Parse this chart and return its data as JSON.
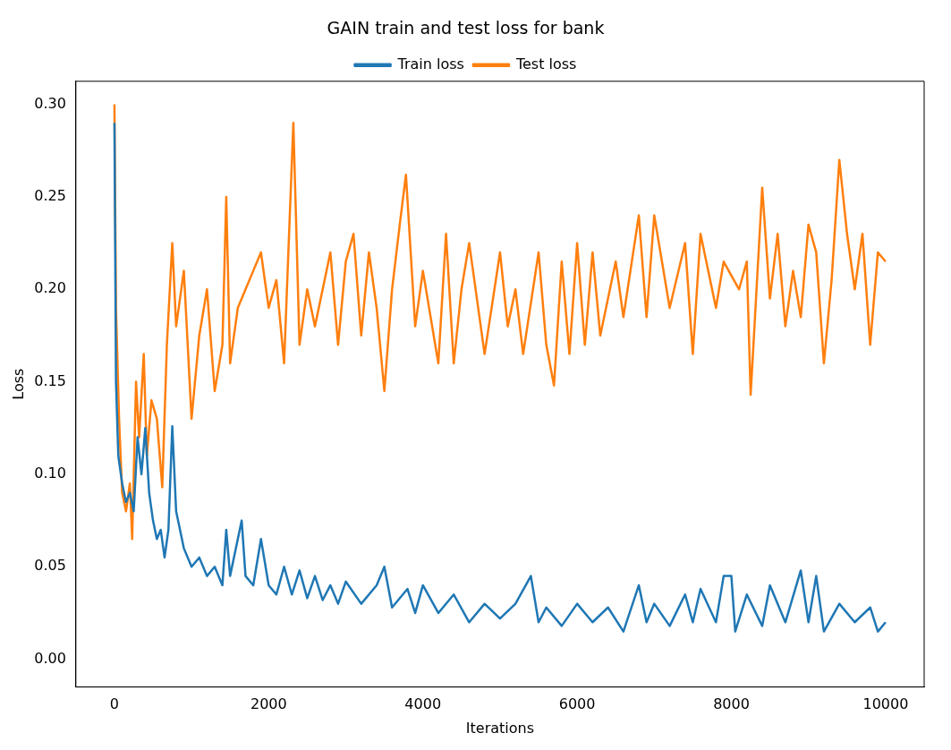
{
  "chart_data": {
    "type": "line",
    "title": "GAIN train and test loss for bank",
    "xlabel": "Iterations",
    "ylabel": "Loss",
    "xlim": [
      -500,
      10500
    ],
    "xticks": [
      0,
      2000,
      4000,
      6000,
      8000,
      10000
    ],
    "ylim": [
      -0.015,
      0.3125
    ],
    "yticks": [
      {
        "value": 0,
        "label": "0.00"
      },
      0.05,
      {
        "value": 0.1,
        "label": "0.10"
      },
      0.15,
      {
        "value": 0.2,
        "label": "0.20"
      },
      0.25,
      {
        "value": 0.3,
        "label": "0.30"
      }
    ],
    "grid": false,
    "legend": "top",
    "line_style": "solid",
    "marker": "none",
    "series": [
      {
        "name": "Train loss",
        "color": "#1f77b4",
        "x": [
          0,
          20,
          50,
          100,
          150,
          200,
          250,
          300,
          350,
          400,
          450,
          500,
          550,
          600,
          650,
          700,
          750,
          800,
          900,
          1000,
          1100,
          1200,
          1300,
          1400,
          1450,
          1500,
          1650,
          1700,
          1800,
          1900,
          2000,
          2100,
          2200,
          2300,
          2400,
          2500,
          2600,
          2700,
          2800,
          2900,
          3000,
          3200,
          3400,
          3500,
          3600,
          3800,
          3900,
          4000,
          4200,
          4400,
          4600,
          4800,
          5000,
          5200,
          5400,
          5500,
          5600,
          5800,
          6000,
          6200,
          6400,
          6600,
          6800,
          6900,
          7000,
          7200,
          7400,
          7500,
          7600,
          7800,
          7900,
          8000,
          8050,
          8200,
          8400,
          8500,
          8700,
          8900,
          9000,
          9100,
          9200,
          9400,
          9600,
          9800,
          9900,
          10000
        ],
        "values": [
          0.29,
          0.15,
          0.11,
          0.095,
          0.085,
          0.09,
          0.08,
          0.12,
          0.1,
          0.125,
          0.09,
          0.075,
          0.065,
          0.07,
          0.055,
          0.07,
          0.126,
          0.08,
          0.06,
          0.05,
          0.055,
          0.045,
          0.05,
          0.04,
          0.07,
          0.045,
          0.075,
          0.045,
          0.04,
          0.065,
          0.04,
          0.035,
          0.05,
          0.035,
          0.048,
          0.033,
          0.045,
          0.032,
          0.04,
          0.03,
          0.042,
          0.03,
          0.04,
          0.05,
          0.028,
          0.038,
          0.025,
          0.04,
          0.025,
          0.035,
          0.02,
          0.03,
          0.022,
          0.03,
          0.045,
          0.02,
          0.028,
          0.018,
          0.03,
          0.02,
          0.028,
          0.015,
          0.04,
          0.02,
          0.03,
          0.018,
          0.035,
          0.02,
          0.038,
          0.02,
          0.045,
          0.045,
          0.015,
          0.035,
          0.018,
          0.04,
          0.02,
          0.048,
          0.02,
          0.045,
          0.015,
          0.03,
          0.02,
          0.028,
          0.015,
          0.02
        ]
      },
      {
        "name": "Test loss",
        "color": "#ff7f0e",
        "x": [
          0,
          20,
          60,
          100,
          150,
          200,
          230,
          280,
          320,
          380,
          420,
          480,
          550,
          620,
          680,
          750,
          800,
          900,
          1000,
          1100,
          1200,
          1300,
          1400,
          1450,
          1500,
          1600,
          1700,
          1800,
          1900,
          2000,
          2100,
          2200,
          2320,
          2400,
          2500,
          2600,
          2800,
          2900,
          3000,
          3100,
          3200,
          3300,
          3400,
          3500,
          3600,
          3700,
          3780,
          3900,
          4000,
          4200,
          4300,
          4400,
          4500,
          4600,
          4800,
          5000,
          5100,
          5200,
          5300,
          5500,
          5600,
          5700,
          5800,
          5900,
          6000,
          6100,
          6200,
          6300,
          6500,
          6600,
          6800,
          6900,
          7000,
          7200,
          7400,
          7500,
          7600,
          7800,
          7900,
          8100,
          8200,
          8250,
          8400,
          8500,
          8600,
          8700,
          8800,
          8900,
          9000,
          9100,
          9200,
          9300,
          9400,
          9500,
          9600,
          9700,
          9800,
          9900,
          10000
        ],
        "values": [
          0.3,
          0.19,
          0.13,
          0.09,
          0.08,
          0.095,
          0.065,
          0.15,
          0.12,
          0.165,
          0.11,
          0.14,
          0.13,
          0.093,
          0.17,
          0.225,
          0.18,
          0.21,
          0.13,
          0.175,
          0.2,
          0.145,
          0.17,
          0.25,
          0.16,
          0.19,
          0.2,
          0.21,
          0.22,
          0.19,
          0.205,
          0.16,
          0.29,
          0.17,
          0.2,
          0.18,
          0.22,
          0.17,
          0.215,
          0.23,
          0.175,
          0.22,
          0.19,
          0.145,
          0.2,
          0.235,
          0.262,
          0.18,
          0.21,
          0.16,
          0.23,
          0.16,
          0.2,
          0.225,
          0.165,
          0.22,
          0.18,
          0.2,
          0.165,
          0.22,
          0.17,
          0.148,
          0.215,
          0.165,
          0.225,
          0.17,
          0.22,
          0.175,
          0.215,
          0.185,
          0.24,
          0.185,
          0.24,
          0.19,
          0.225,
          0.165,
          0.23,
          0.19,
          0.215,
          0.2,
          0.215,
          0.143,
          0.255,
          0.195,
          0.23,
          0.18,
          0.21,
          0.185,
          0.235,
          0.22,
          0.16,
          0.205,
          0.27,
          0.23,
          0.2,
          0.23,
          0.17,
          0.22,
          0.215
        ]
      }
    ]
  }
}
